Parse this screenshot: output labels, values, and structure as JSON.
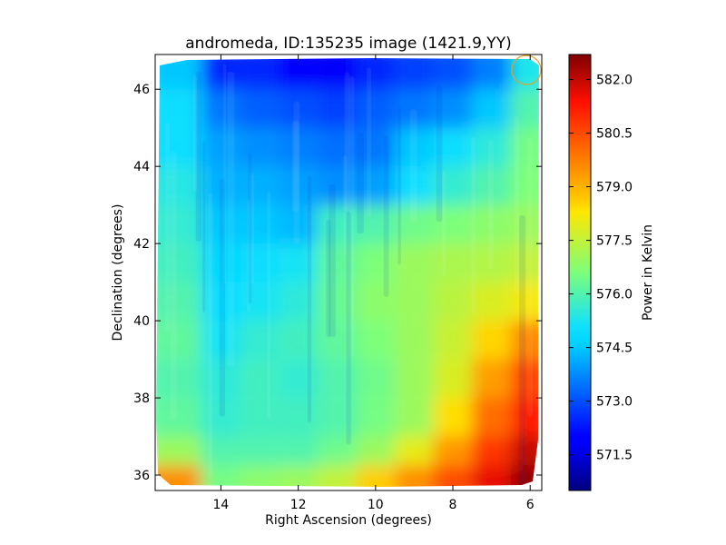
{
  "chart_data": {
    "type": "heatmap",
    "title": "andromeda, ID:135235 image (1421.9,YY)",
    "xlabel": "Right Ascension (degrees)",
    "ylabel": "Declination (degrees)",
    "xlim": [
      15.7,
      5.7
    ],
    "ylim": [
      35.6,
      46.9
    ],
    "xticks": [
      "14",
      "12",
      "10",
      "8",
      "6"
    ],
    "yticks": [
      "36",
      "38",
      "40",
      "42",
      "44",
      "46"
    ],
    "xtick_values": [
      14,
      12,
      10,
      8,
      6
    ],
    "ytick_values": [
      36,
      38,
      40,
      42,
      44,
      46
    ],
    "colorbar": {
      "label": "Power in Kelvin",
      "range": [
        570.5,
        582.7
      ],
      "ticks": [
        "571.5",
        "573.0",
        "574.5",
        "576.0",
        "577.5",
        "579.0",
        "580.5",
        "582.0"
      ],
      "tick_values": [
        571.5,
        573.0,
        574.5,
        576.0,
        577.5,
        579.0,
        580.5,
        582.0
      ],
      "colormap": "jet"
    },
    "rows_dec": [
      46.5,
      45.5,
      44.5,
      43.5,
      42.5,
      41.5,
      40.5,
      39.5,
      38.5,
      37.5,
      36.5,
      36.0
    ],
    "cols_ra": [
      15.0,
      14.0,
      13.0,
      12.0,
      11.0,
      10.0,
      9.0,
      8.0,
      7.0,
      6.0
    ],
    "values": [
      [
        574.5,
        572.5,
        572.5,
        572.0,
        571.8,
        572.5,
        572.8,
        573.0,
        573.6,
        575.3
      ],
      [
        575.0,
        573.5,
        573.2,
        573.0,
        572.8,
        573.2,
        573.5,
        573.8,
        574.5,
        576.0
      ],
      [
        575.0,
        574.0,
        573.8,
        573.6,
        573.4,
        573.5,
        574.5,
        575.0,
        575.5,
        576.5
      ],
      [
        575.4,
        574.2,
        574.2,
        574.0,
        573.8,
        574.0,
        575.0,
        575.6,
        576.0,
        576.6
      ],
      [
        575.6,
        574.5,
        574.5,
        574.3,
        575.8,
        576.0,
        576.4,
        576.6,
        576.8,
        577.0
      ],
      [
        575.8,
        574.8,
        575.0,
        575.2,
        576.2,
        576.6,
        577.0,
        577.2,
        577.3,
        577.5
      ],
      [
        576.0,
        575.0,
        575.2,
        575.5,
        576.3,
        576.8,
        577.0,
        577.4,
        577.8,
        578.2
      ],
      [
        576.2,
        575.2,
        575.6,
        575.8,
        576.2,
        576.6,
        577.0,
        577.6,
        578.5,
        579.6
      ],
      [
        576.0,
        575.5,
        575.8,
        575.6,
        576.0,
        576.4,
        577.0,
        577.8,
        579.3,
        580.6
      ],
      [
        576.2,
        575.6,
        575.8,
        575.8,
        576.0,
        576.5,
        577.0,
        578.4,
        580.0,
        581.2
      ],
      [
        577.0,
        576.0,
        576.0,
        576.0,
        576.4,
        577.0,
        578.0,
        579.4,
        580.8,
        582.0
      ],
      [
        579.5,
        576.5,
        576.8,
        577.0,
        577.5,
        578.6,
        579.5,
        580.5,
        581.6,
        582.5
      ]
    ],
    "grid": false,
    "beam_marker": {
      "ra": 6.1,
      "dec": 46.5,
      "color": "#e8a020"
    }
  }
}
